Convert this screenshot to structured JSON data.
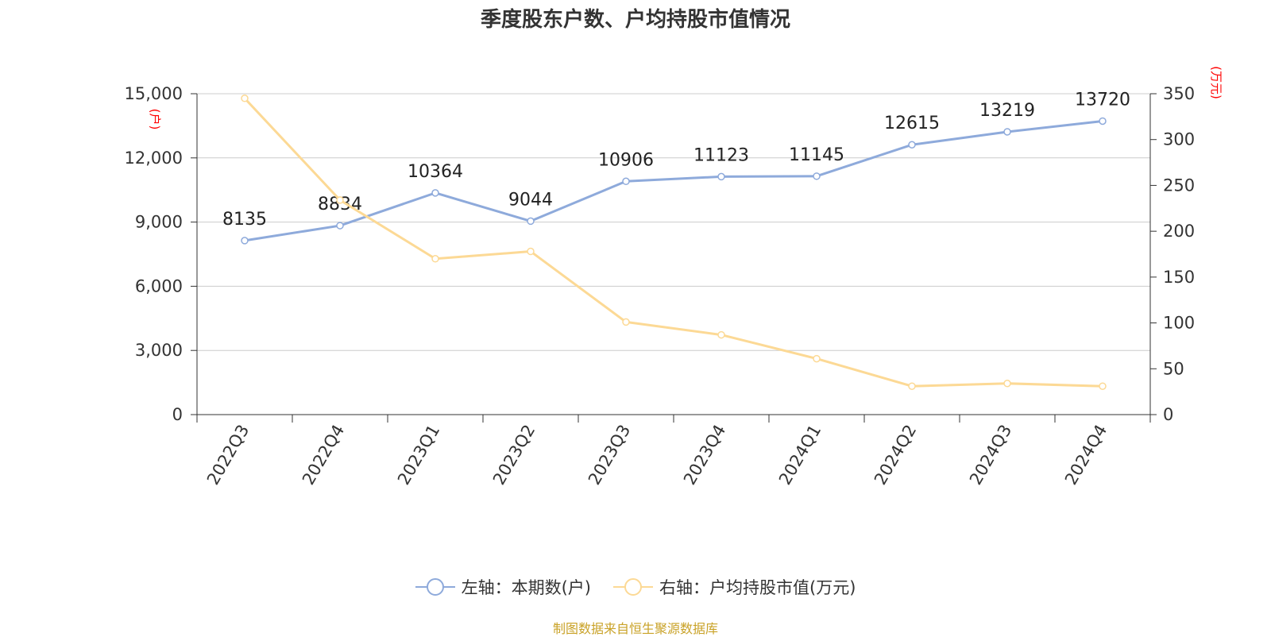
{
  "chart_data": {
    "type": "line",
    "title": "季度股东户数、户均持股市值情况",
    "categories": [
      "2022Q3",
      "2022Q4",
      "2023Q1",
      "2023Q2",
      "2023Q3",
      "2023Q4",
      "2024Q1",
      "2024Q2",
      "2024Q3",
      "2024Q4"
    ],
    "series": [
      {
        "name": "左轴：本期数(户)",
        "axis": "left",
        "color": "#8eaadb",
        "values": [
          8135,
          8834,
          10364,
          9044,
          10906,
          11123,
          11145,
          12615,
          13219,
          13720
        ],
        "labels": [
          "8135",
          "8834",
          "10364",
          "9044",
          "10906",
          "11123",
          "11145",
          "12615",
          "13219",
          "13720"
        ]
      },
      {
        "name": "右轴：户均持股市值(万元)",
        "axis": "right",
        "color": "#fcd995",
        "values": [
          345,
          234,
          170,
          178,
          101,
          87,
          61,
          31,
          34,
          31
        ]
      }
    ],
    "y_left": {
      "unit": "(户)",
      "range": [
        0,
        15000
      ],
      "ticks": [
        0,
        3000,
        6000,
        9000,
        12000,
        15000
      ],
      "tick_labels": [
        "0",
        "3,000",
        "6,000",
        "9,000",
        "12,000",
        "15,000"
      ]
    },
    "y_right": {
      "unit": "(万元)",
      "range": [
        0,
        350
      ],
      "ticks": [
        0,
        50,
        100,
        150,
        200,
        250,
        300,
        350
      ],
      "tick_labels": [
        "0",
        "50",
        "100",
        "150",
        "200",
        "250",
        "300",
        "350"
      ]
    },
    "grid": true,
    "legend_position": "bottom-center"
  },
  "source_text": "制图数据来自恒生聚源数据库",
  "colors": {
    "grid": "#cccccc",
    "axis": "#333333",
    "unit_label": "#ff0000",
    "source": "#c9a227"
  }
}
